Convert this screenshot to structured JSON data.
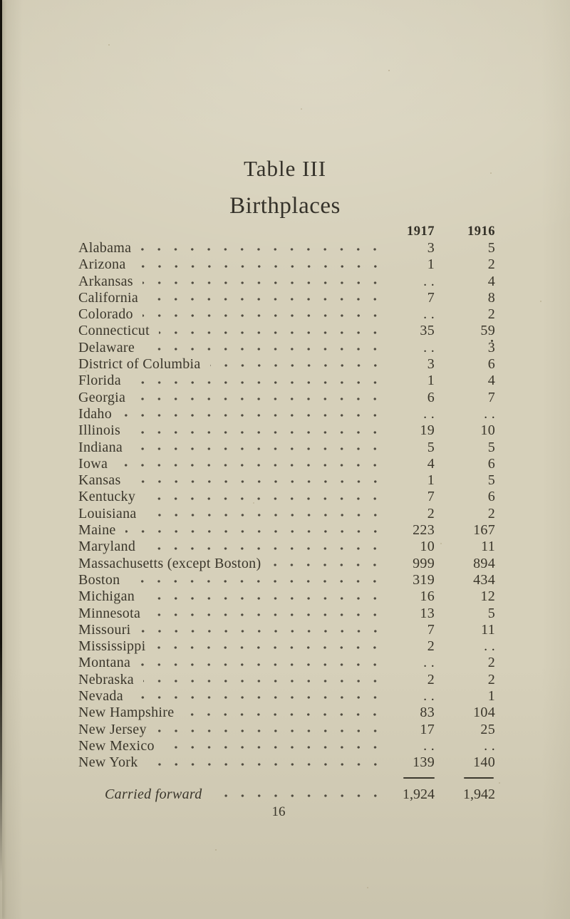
{
  "page": {
    "title": "Table III",
    "subtitle": "Birthplaces",
    "page_number": "16",
    "colors": {
      "paper": "#d6d0ba",
      "ink": "#3a362b",
      "edge_shadow": "#14120c"
    }
  },
  "table": {
    "columns": [
      "1917",
      "1916"
    ],
    "empty_marker": ". .",
    "rows": [
      {
        "label": "Alabama",
        "v1917": "3",
        "v1916": "5"
      },
      {
        "label": "Arizona",
        "v1917": "1",
        "v1916": "2"
      },
      {
        "label": "Arkansas",
        "v1917": ". .",
        "v1916": "4"
      },
      {
        "label": "California",
        "v1917": "7",
        "v1916": "8"
      },
      {
        "label": "Colorado",
        "v1917": ". .",
        "v1916": "2"
      },
      {
        "label": "Connecticut",
        "v1917": "35",
        "v1916": "59"
      },
      {
        "label": "Delaware",
        "v1917": ". .",
        "v1916": "3"
      },
      {
        "label": "District of Columbia",
        "v1917": "3",
        "v1916": "6"
      },
      {
        "label": "Florida",
        "v1917": "1",
        "v1916": "4"
      },
      {
        "label": "Georgia",
        "v1917": "6",
        "v1916": "7"
      },
      {
        "label": "Idaho",
        "v1917": ". .",
        "v1916": ". ."
      },
      {
        "label": "Illinois",
        "v1917": "19",
        "v1916": "10"
      },
      {
        "label": "Indiana",
        "v1917": "5",
        "v1916": "5"
      },
      {
        "label": "Iowa",
        "v1917": "4",
        "v1916": "6"
      },
      {
        "label": "Kansas",
        "v1917": "1",
        "v1916": "5"
      },
      {
        "label": "Kentucky",
        "v1917": "7",
        "v1916": "6"
      },
      {
        "label": "Louisiana",
        "v1917": "2",
        "v1916": "2"
      },
      {
        "label": "Maine",
        "v1917": "223",
        "v1916": "167"
      },
      {
        "label": "Maryland",
        "v1917": "10",
        "v1916": "11"
      },
      {
        "label": "Massachusetts (except Boston)",
        "v1917": "999",
        "v1916": "894"
      },
      {
        "label": "Boston",
        "v1917": "319",
        "v1916": "434"
      },
      {
        "label": "Michigan",
        "v1917": "16",
        "v1916": "12"
      },
      {
        "label": "Minnesota",
        "v1917": "13",
        "v1916": "5"
      },
      {
        "label": "Missouri",
        "v1917": "7",
        "v1916": "11"
      },
      {
        "label": "Mississippi",
        "v1917": "2",
        "v1916": ". ."
      },
      {
        "label": "Montana",
        "v1917": ". .",
        "v1916": "2"
      },
      {
        "label": "Nebraska",
        "v1917": "2",
        "v1916": "2"
      },
      {
        "label": "Nevada",
        "v1917": ". .",
        "v1916": "1"
      },
      {
        "label": "New Hampshire",
        "v1917": "83",
        "v1916": "104"
      },
      {
        "label": "New Jersey",
        "v1917": "17",
        "v1916": "25"
      },
      {
        "label": "New Mexico",
        "v1917": ". .",
        "v1916": ". ."
      },
      {
        "label": "New York",
        "v1917": "139",
        "v1916": "140"
      }
    ],
    "footer": {
      "label": "Carried forward",
      "v1917": "1,924",
      "v1916": "1,942"
    }
  }
}
